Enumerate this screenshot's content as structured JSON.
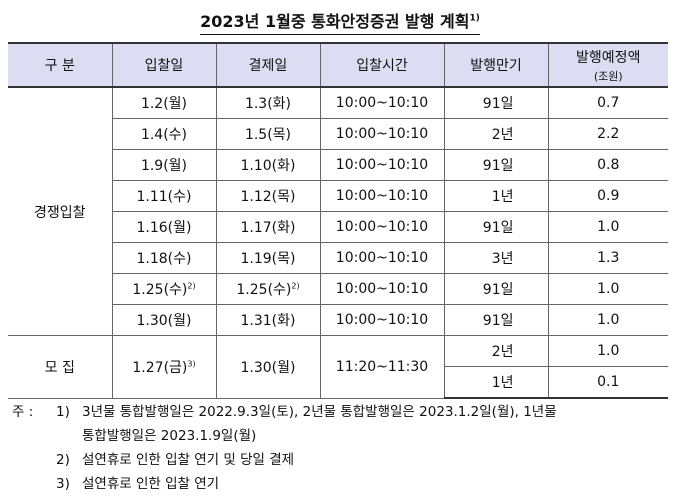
{
  "title": {
    "text": "2023년 1월중 통화안정증권 발행 계획",
    "mark": "1)"
  },
  "headers": {
    "category": "구 분",
    "bid_date": "입찰일",
    "settle_date": "결제일",
    "bid_time": "입찰시간",
    "maturity": "발행만기",
    "amount": "발행예정액",
    "amount_unit": "(조원)"
  },
  "groups": {
    "competitive": "경쟁입찰",
    "subscription": "모 집"
  },
  "competitive_rows": [
    {
      "bid": "1.2(월)",
      "bid_note": "",
      "settle": "1.3(화)",
      "settle_note": "",
      "time": "10:00~10:10",
      "maturity": "91일",
      "amount": "0.7"
    },
    {
      "bid": "1.4(수)",
      "bid_note": "",
      "settle": "1.5(목)",
      "settle_note": "",
      "time": "10:00~10:10",
      "maturity": "2년",
      "amount": "2.2"
    },
    {
      "bid": "1.9(월)",
      "bid_note": "",
      "settle": "1.10(화)",
      "settle_note": "",
      "time": "10:00~10:10",
      "maturity": "91일",
      "amount": "0.8"
    },
    {
      "bid": "1.11(수)",
      "bid_note": "",
      "settle": "1.12(목)",
      "settle_note": "",
      "time": "10:00~10:10",
      "maturity": "1년",
      "amount": "0.9"
    },
    {
      "bid": "1.16(월)",
      "bid_note": "",
      "settle": "1.17(화)",
      "settle_note": "",
      "time": "10:00~10:10",
      "maturity": "91일",
      "amount": "1.0"
    },
    {
      "bid": "1.18(수)",
      "bid_note": "",
      "settle": "1.19(목)",
      "settle_note": "",
      "time": "10:00~10:10",
      "maturity": "3년",
      "amount": "1.3"
    },
    {
      "bid": "1.25(수)",
      "bid_note": "2)",
      "settle": "1.25(수)",
      "settle_note": "2)",
      "time": "10:00~10:10",
      "maturity": "91일",
      "amount": "1.0"
    },
    {
      "bid": "1.30(월)",
      "bid_note": "",
      "settle": "1.31(화)",
      "settle_note": "",
      "time": "10:00~10:10",
      "maturity": "91일",
      "amount": "1.0"
    }
  ],
  "subscription": {
    "bid": "1.27(금)",
    "bid_note": "3)",
    "settle": "1.30(월)",
    "time": "11:20~11:30",
    "rows": [
      {
        "maturity": "2년",
        "amount": "1.0"
      },
      {
        "maturity": "1년",
        "amount": "0.1"
      }
    ]
  },
  "notes": {
    "lead": "주 :",
    "items": [
      {
        "num": "1)",
        "lines": [
          "3년물 통합발행일은 2022.9.3일(토), 2년물 통합발행일은 2023.1.2일(월), 1년물",
          "통합발행일은 2023.1.9일(월)"
        ]
      },
      {
        "num": "2)",
        "lines": [
          "설연휴로 인한 입찰 연기 및 당일 결제"
        ]
      },
      {
        "num": "3)",
        "lines": [
          "설연휴로 인한 입찰 연기"
        ]
      }
    ]
  }
}
